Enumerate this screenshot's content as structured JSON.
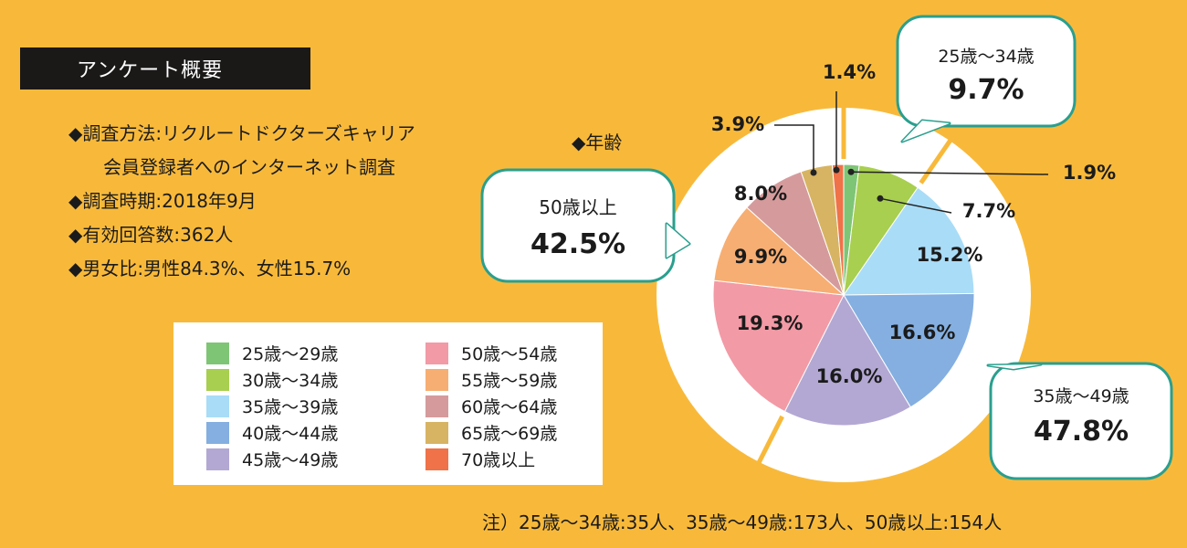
{
  "header": {
    "title": "アンケート概要"
  },
  "overview": {
    "method_line1": "◆調査方法:リクルートドクターズキャリア",
    "method_line2": "会員登録者へのインターネット調査",
    "period": "◆調査時期:2018年9月",
    "responses": "◆有効回答数:362人",
    "gender": "◆男女比:男性84.3%、女性15.7%"
  },
  "chart_label": "◆年齢",
  "chart_data": {
    "type": "pie",
    "categories": [
      "25歳～29歳",
      "30歳～34歳",
      "35歳～39歳",
      "40歳～44歳",
      "45歳～49歳",
      "50歳～54歳",
      "55歳～59歳",
      "60歳～64歳",
      "65歳～69歳",
      "70歳以上"
    ],
    "values": [
      1.9,
      7.7,
      15.2,
      16.6,
      16.0,
      19.3,
      9.9,
      8.0,
      3.9,
      1.4
    ],
    "labels": [
      "1.9%",
      "7.7%",
      "15.2%",
      "16.6%",
      "16.0%",
      "19.3%",
      "9.9%",
      "8.0%",
      "3.9%",
      "1.4%"
    ],
    "colors": [
      "#7fc576",
      "#a8cf4f",
      "#a9dcf7",
      "#84afe0",
      "#b3a8d3",
      "#f29aa6",
      "#f7ae72",
      "#d59b9c",
      "#d7b463",
      "#ef7248"
    ],
    "legend_position": "bottom-left",
    "groups": [
      {
        "name": "25歳～34歳",
        "value": "9.7%"
      },
      {
        "name": "35歳～49歳",
        "value": "47.8%"
      },
      {
        "name": "50歳以上",
        "value": "42.5%"
      }
    ]
  },
  "note": "注）25歳～34歳:35人、35歳～49歳:173人、50歳以上:154人"
}
